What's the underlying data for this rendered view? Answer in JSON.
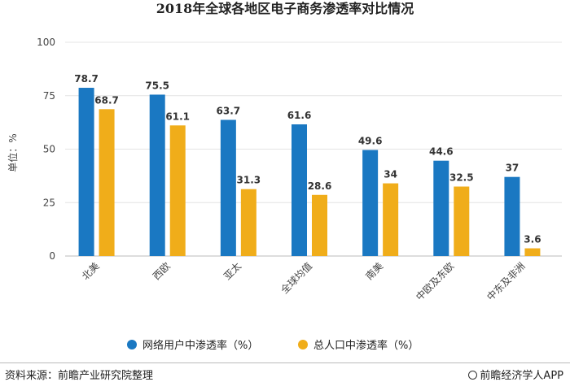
{
  "chart_data": {
    "type": "bar",
    "title": "2018年全球各地区电子商务渗透率对比情况",
    "ylabel": "单位：%",
    "xlabel": "",
    "ylim": [
      0,
      100
    ],
    "yticks": [
      "0",
      "25",
      "50",
      "75",
      "100"
    ],
    "grid": true,
    "legend_position": "bottom",
    "categories": [
      "北美",
      "西欧",
      "亚太",
      "全球均值",
      "南美",
      "中欧及东欧",
      "中东及非洲"
    ],
    "series": [
      {
        "name": "网络用户中渗透率（%）",
        "color": "#1a78c2",
        "values": [
          78.7,
          75.5,
          63.7,
          61.6,
          49.6,
          44.6,
          37
        ]
      },
      {
        "name": "总人口中渗透率（%）",
        "color": "#f0ad1a",
        "values": [
          68.7,
          61.1,
          31.3,
          28.6,
          34,
          32.5,
          3.6
        ]
      }
    ],
    "value_labels": [
      [
        "78.7",
        "75.5",
        "63.7",
        "61.6",
        "49.6",
        "44.6",
        "37"
      ],
      [
        "68.7",
        "61.1",
        "31.3",
        "28.6",
        "34",
        "32.5",
        "3.6"
      ]
    ]
  },
  "footer": {
    "source": "资料来源：前瞻产业研究院整理",
    "brand": "前瞻经济学人APP",
    "brand_icon": "brand-circle-icon"
  }
}
